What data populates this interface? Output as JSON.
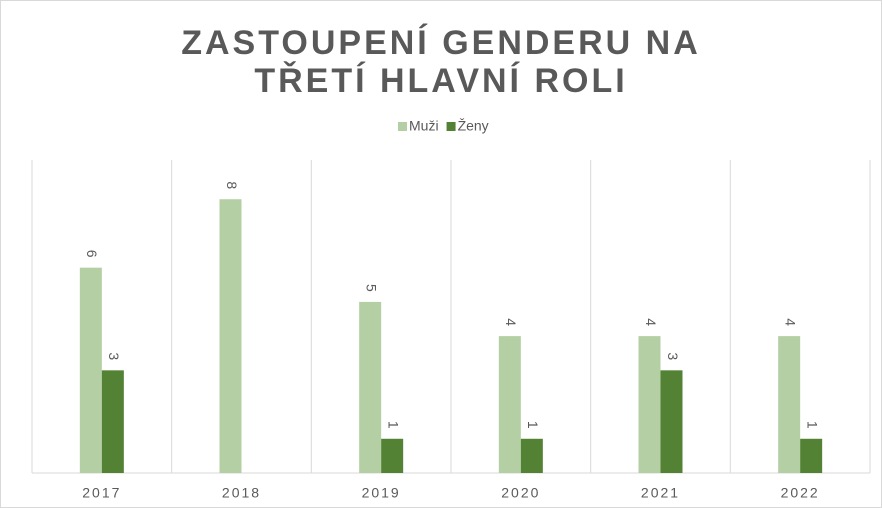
{
  "chart_data": {
    "type": "bar",
    "title": "ZASTOUPENÍ GENDERU NA TŘETÍ HLAVNÍ ROLI",
    "categories": [
      "2017",
      "2018",
      "2019",
      "2020",
      "2021",
      "2022"
    ],
    "series": [
      {
        "name": "Muži",
        "color": "#b5cfa5",
        "values": [
          6,
          8,
          5,
          4,
          4,
          4
        ]
      },
      {
        "name": "Ženy",
        "color": "#548235",
        "values": [
          3,
          null,
          1,
          1,
          3,
          1
        ]
      }
    ],
    "ylim": [
      0,
      9
    ],
    "legend": "top"
  }
}
